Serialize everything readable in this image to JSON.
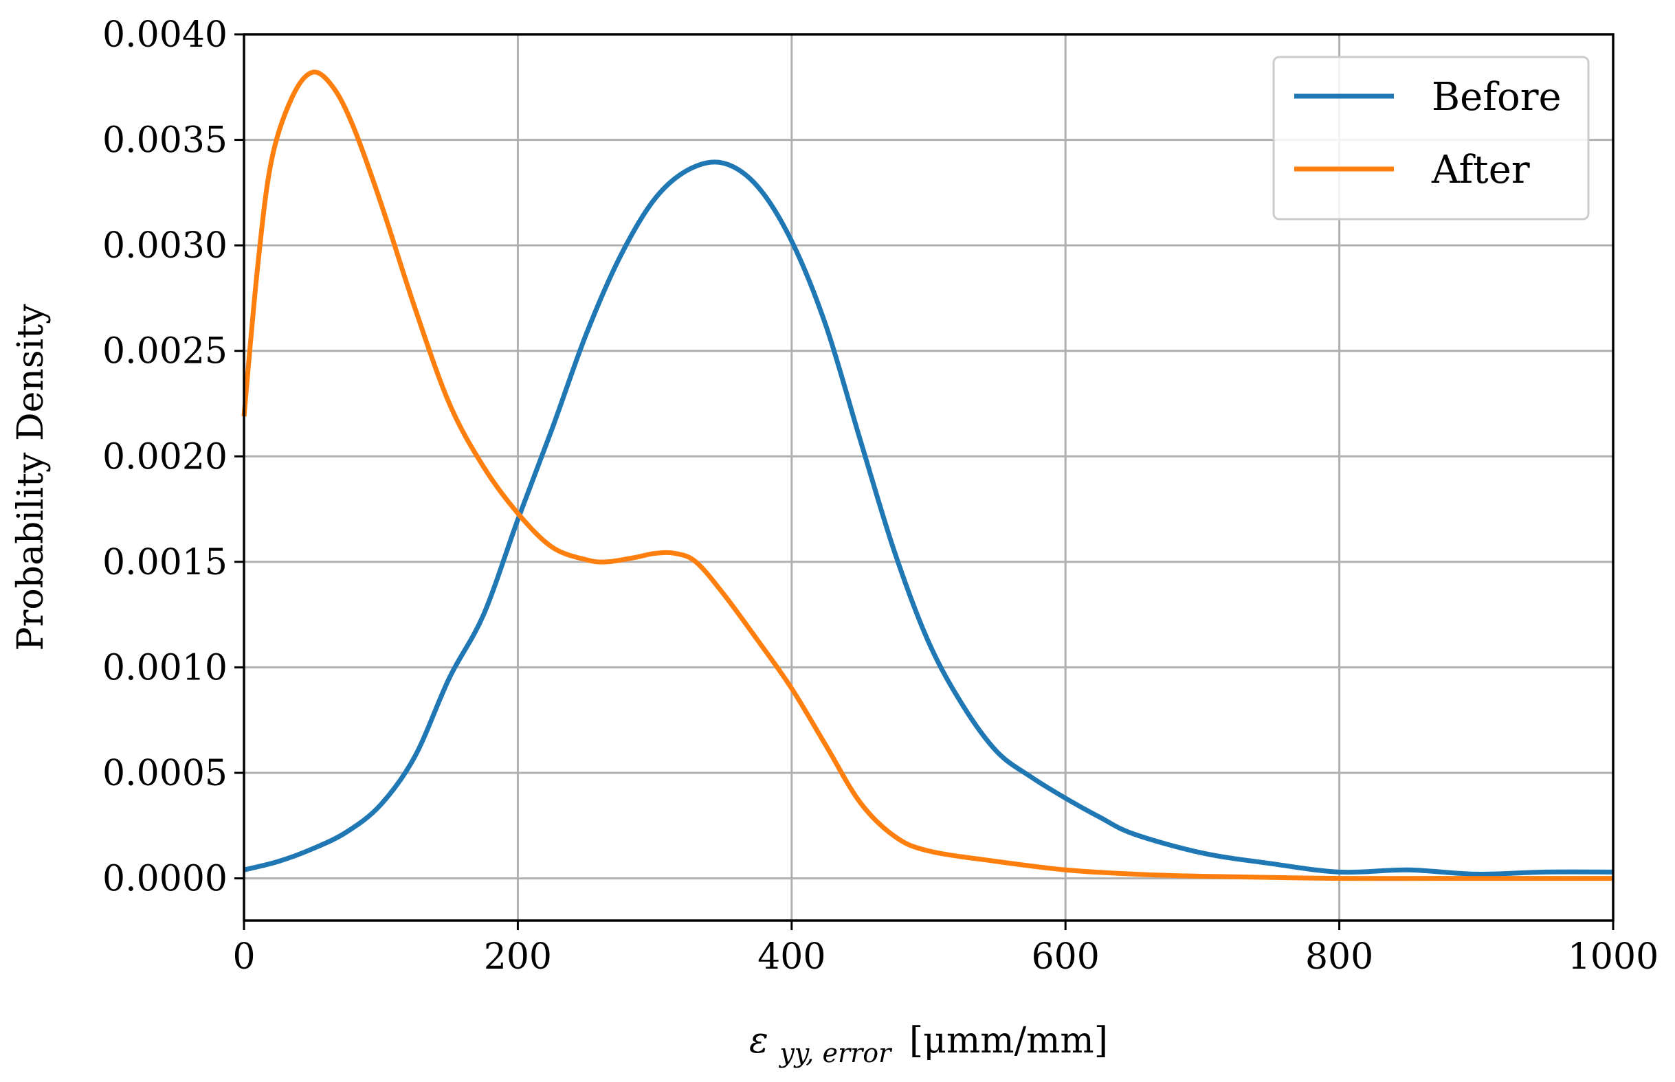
{
  "chart_data": {
    "type": "line",
    "title": "",
    "xlabel": {
      "symbol": "ε",
      "subscript": "yy, error",
      "unit": "[μmm/mm]"
    },
    "ylabel": "Probability Density",
    "xlim": [
      0,
      1000
    ],
    "ylim": [
      -0.0002,
      0.004
    ],
    "grid": true,
    "legend_position": "top-right",
    "x_ticks": [
      0,
      200,
      400,
      600,
      800,
      1000
    ],
    "x_tick_labels": [
      "0",
      "200",
      "400",
      "600",
      "800",
      "1000"
    ],
    "y_ticks": [
      0,
      0.0005,
      0.001,
      0.0015,
      0.002,
      0.0025,
      0.003,
      0.0035,
      0.004
    ],
    "y_tick_labels": [
      "0.0000",
      "0.0005",
      "0.0010",
      "0.0015",
      "0.0020",
      "0.0025",
      "0.0030",
      "0.0035",
      "0.0040"
    ],
    "series": [
      {
        "name": "Before",
        "color": "#1f77b4",
        "x": [
          0,
          25,
          50,
          75,
          100,
          125,
          150,
          175,
          200,
          225,
          250,
          275,
          300,
          325,
          350,
          375,
          400,
          425,
          450,
          475,
          500,
          525,
          550,
          575,
          600,
          625,
          650,
          700,
          750,
          800,
          850,
          900,
          950,
          1000
        ],
        "y": [
          4e-05,
          8e-05,
          0.00014,
          0.00022,
          0.00035,
          0.00058,
          0.00095,
          0.00125,
          0.0017,
          0.00213,
          0.00258,
          0.00295,
          0.00322,
          0.00336,
          0.00339,
          0.00328,
          0.00302,
          0.00262,
          0.00208,
          0.00155,
          0.00112,
          0.00082,
          0.0006,
          0.00048,
          0.00038,
          0.00029,
          0.00021,
          0.00012,
          7e-05,
          3e-05,
          4e-05,
          2e-05,
          3e-05,
          3e-05
        ]
      },
      {
        "name": "After",
        "color": "#ff7f0e",
        "x": [
          0,
          10,
          20,
          35,
          50,
          65,
          80,
          100,
          125,
          150,
          175,
          200,
          225,
          250,
          265,
          285,
          300,
          315,
          330,
          350,
          375,
          400,
          425,
          450,
          475,
          500,
          550,
          600,
          650,
          700,
          800,
          900,
          1000
        ],
        "y": [
          0.00219,
          0.0029,
          0.0034,
          0.0037,
          0.00382,
          0.00375,
          0.00356,
          0.0032,
          0.0027,
          0.00225,
          0.00195,
          0.00173,
          0.00157,
          0.00151,
          0.0015,
          0.00152,
          0.00154,
          0.00154,
          0.0015,
          0.00135,
          0.00113,
          0.0009,
          0.00063,
          0.00036,
          0.0002,
          0.00013,
          8e-05,
          4e-05,
          2e-05,
          1e-05,
          0.0,
          0.0,
          0.0
        ]
      }
    ]
  }
}
